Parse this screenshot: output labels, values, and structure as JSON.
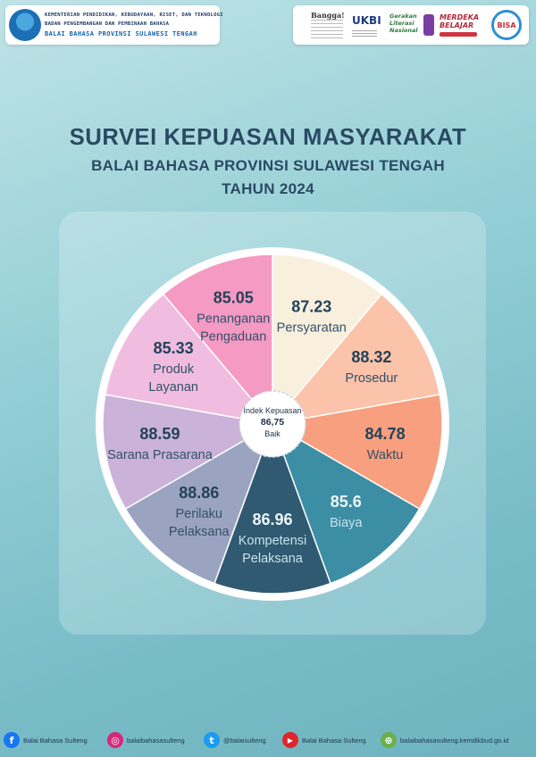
{
  "header": {
    "agency_line1": "KEMENTERIAN PENDIDIKAN, KEBUDAYAAN, RISET, DAN TEKNOLOGI",
    "agency_line2": "BADAN PENGEMBANGAN DAN PEMBINAAN BAHASA",
    "agency_line3": "BALAI BAHASA PROVINSI SULAWESI TENGAH",
    "partner_bangga": "Bangga!",
    "partner_ukbi": "UKBI",
    "partner_gln": "Gerakan Literasi Nasional",
    "partner_mb": "MERDEKA BELAJAR",
    "partner_bisa": "BISA"
  },
  "chart_data": {
    "type": "pie",
    "title": "SURVEI KEPUASAN MASYARAKAT",
    "subtitle": "BALAI BAHASA PROVINSI SULAWESI TENGAH",
    "year_label": "TAHUN 2024",
    "center_label": [
      "Indek Kepuasan",
      "86,75",
      "Baik"
    ],
    "slices": [
      {
        "label": [
          "Persyaratan"
        ],
        "value_text": "87.23",
        "value": 87.23,
        "color": "#f8f0dd"
      },
      {
        "label": [
          "Prosedur"
        ],
        "value_text": "88.32",
        "value": 88.32,
        "color": "#fbc3aa"
      },
      {
        "label": [
          "Waktu"
        ],
        "value_text": "84.78",
        "value": 84.78,
        "color": "#f79f7e"
      },
      {
        "label": [
          "Biaya"
        ],
        "value_text": "85.6",
        "value": 85.6,
        "color": "#3b8ea4"
      },
      {
        "label": [
          "Kompetensi",
          "Pelaksana"
        ],
        "value_text": "86.96",
        "value": 86.96,
        "color": "#2f5a72"
      },
      {
        "label": [
          "Perilaku",
          "Pelaksana"
        ],
        "value_text": "88.86",
        "value": 88.86,
        "color": "#9aa3c0"
      },
      {
        "label": [
          "Sarana Prasarana"
        ],
        "value_text": "88.59",
        "value": 88.59,
        "color": "#cab2d8"
      },
      {
        "label": [
          "Produk",
          "Layanan"
        ],
        "value_text": "85.33",
        "value": 85.33,
        "color": "#f0bce0"
      },
      {
        "label": [
          "Penanganan",
          "Pengaduan"
        ],
        "value_text": "85.05",
        "value": 85.05,
        "color": "#f59ac3"
      }
    ]
  },
  "footer": {
    "facebook": "Balai Bahasa Sulteng",
    "instagram": "balaibahasasulteng",
    "twitter": "@balaisulteng",
    "youtube": "Balai Bahasa Sulteng",
    "website": "balaibahasasulteng.kemdikbud.go.id"
  },
  "colors": {
    "facebook": "#1877f2",
    "instagram": "#d6287a",
    "twitter": "#1d9bf0",
    "youtube": "#e0262a",
    "website": "#6ab04c"
  }
}
